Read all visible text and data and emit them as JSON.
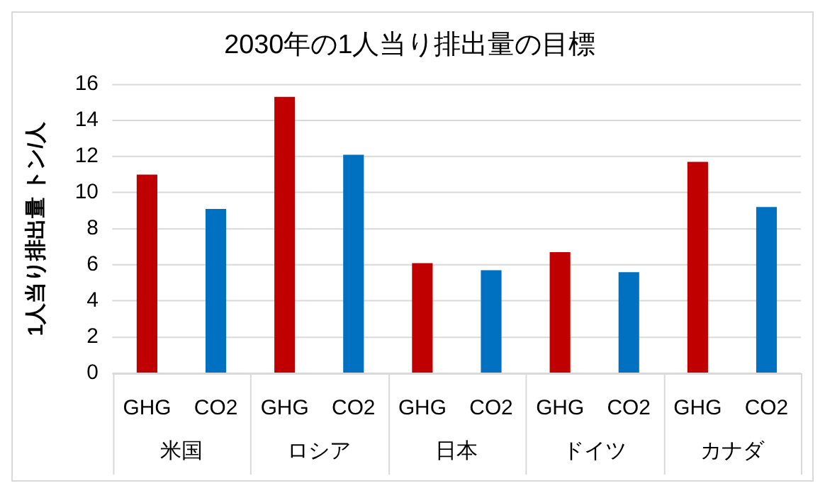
{
  "chart_data": {
    "type": "bar",
    "title": "2030年の1人当り排出量の目標",
    "ylabel": "1人当り排出量 トン/人",
    "categories": [
      "米国",
      "ロシア",
      "日本",
      "ドイツ",
      "カナダ"
    ],
    "series": [
      {
        "name": "GHG",
        "color": "#c00000",
        "values": [
          11.0,
          15.3,
          6.1,
          6.7,
          11.7
        ]
      },
      {
        "name": "CO2",
        "color": "#0070c0",
        "values": [
          9.1,
          12.1,
          5.7,
          5.6,
          9.2
        ]
      }
    ],
    "ylim": [
      0,
      16
    ],
    "yticks": [
      0,
      2,
      4,
      6,
      8,
      10,
      12,
      14,
      16
    ],
    "grid": "y",
    "legend": false
  }
}
